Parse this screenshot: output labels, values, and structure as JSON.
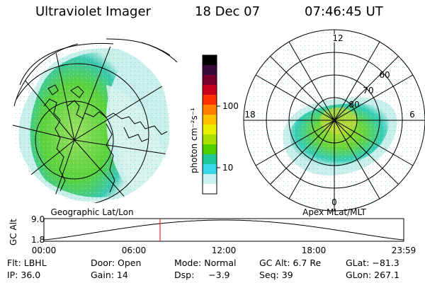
{
  "header": {
    "title": "Ultraviolet Imager",
    "date": "18 Dec 07",
    "time": "07:46:45 UT"
  },
  "left_panel": {
    "caption": "Geographic Lat/Lon"
  },
  "right_panel": {
    "caption": "Apex MLat/MLT",
    "lat_labels": [
      "60",
      "70",
      "80"
    ],
    "mlt_labels": [
      "12",
      "18",
      "6",
      "0"
    ]
  },
  "colorbar": {
    "unit_label": "photon cm⁻²s⁻¹",
    "tick_labels": [
      "100",
      "10"
    ],
    "colors": [
      "#000000",
      "#3a0a3a",
      "#7a0030",
      "#c8001c",
      "#ff3000",
      "#ff7e00",
      "#ffc000",
      "#e8f000",
      "#a8e000",
      "#50d000",
      "#20c898",
      "#38d8e8",
      "#c8f0f0",
      "#ffffff"
    ]
  },
  "timeline": {
    "y_label": "GC Alt",
    "y_ticks": [
      "9.0",
      "1.8"
    ],
    "x_ticks": [
      "00:00",
      "06:00",
      "12:00",
      "18:00",
      "23:59"
    ],
    "marker_color": "#ff0000"
  },
  "footer": {
    "row1": [
      "Flt: LBHL",
      "Door: Open",
      "Mode: Normal",
      "GC Alt: 6.7 Re",
      "GLat: −81.3"
    ],
    "row2": [
      "IP: 36.0",
      "Gain: 14",
      "Dsp:     −3.9",
      "Seq: 39",
      "GLon: 267.1"
    ]
  },
  "colors": {
    "aurora_green": "#5ad23a",
    "aurora_light": "#b8ece0",
    "aurora_cyan": "#38d6c8"
  }
}
